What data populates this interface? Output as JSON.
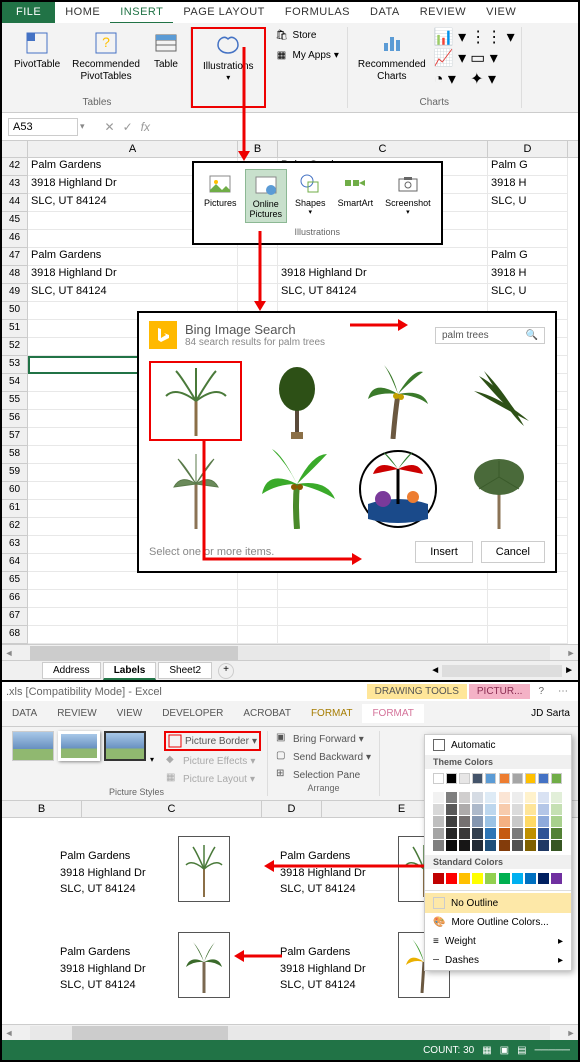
{
  "ribbon": {
    "tabs": [
      "FILE",
      "HOME",
      "INSERT",
      "PAGE LAYOUT",
      "FORMULAS",
      "DATA",
      "REVIEW",
      "VIEW"
    ],
    "active_tab": "INSERT",
    "groups": {
      "tables": {
        "label": "Tables",
        "pivottable": "PivotTable",
        "recommended": "Recommended\nPivotTables",
        "table": "Table"
      },
      "illustrations": {
        "label": "Illustrations",
        "btn": "Illustrations"
      },
      "apps": {
        "store": "Store",
        "myapps": "My Apps"
      },
      "charts": {
        "label": "Charts",
        "recommended": "Recommended\nCharts"
      }
    }
  },
  "name_box": "A53",
  "columns": {
    "A": 210,
    "B": 40,
    "C": 210,
    "D": 80
  },
  "rows": [
    {
      "n": 42,
      "A": "Palm Gardens",
      "C": "Palm Gardens",
      "D": "Palm G"
    },
    {
      "n": 43,
      "A": "3918 Highland Dr",
      "C": "",
      "D": "3918 H"
    },
    {
      "n": 44,
      "A": "SLC, UT  84124",
      "C": "",
      "D": "SLC, U"
    },
    {
      "n": 45
    },
    {
      "n": 46
    },
    {
      "n": 47,
      "A": "Palm Gardens",
      "C": "",
      "D": "Palm G"
    },
    {
      "n": 48,
      "A": "3918 Highland Dr",
      "C": "3918 Highland Dr",
      "D": "3918 H"
    },
    {
      "n": 49,
      "A": "SLC, UT  84124",
      "C": "SLC, UT  84124",
      "D": "SLC, U"
    },
    {
      "n": 50
    },
    {
      "n": 51
    },
    {
      "n": 52
    },
    {
      "n": 53
    },
    {
      "n": 54
    },
    {
      "n": 55
    },
    {
      "n": 56
    },
    {
      "n": 57
    },
    {
      "n": 58
    },
    {
      "n": 59
    },
    {
      "n": 60
    },
    {
      "n": 61
    },
    {
      "n": 62
    },
    {
      "n": 63
    },
    {
      "n": 64
    },
    {
      "n": 65
    },
    {
      "n": 66
    },
    {
      "n": 67
    },
    {
      "n": 68
    }
  ],
  "illus_popup": {
    "pictures": "Pictures",
    "online": "Online\nPictures",
    "shapes": "Shapes",
    "smartart": "SmartArt",
    "screenshot": "Screenshot",
    "label": "Illustrations"
  },
  "bing": {
    "title": "Bing Image Search",
    "sub": "84 search results for palm trees",
    "query": "palm trees",
    "footer_text": "Select one or more items.",
    "insert": "Insert",
    "cancel": "Cancel"
  },
  "sheet_tabs": {
    "t1": "Address",
    "t2": "Labels",
    "t3": "Sheet2"
  },
  "section2": {
    "title": ".xls  [Compatibility Mode] - Excel",
    "drawing_tools": "DRAWING TOOLS",
    "picture_tools": "PICTUR...",
    "tabs": [
      "DATA",
      "REVIEW",
      "VIEW",
      "DEVELOPER",
      "Acrobat",
      "FORMAT",
      "FORMAT"
    ],
    "user": "JD Sarta",
    "picture_border": "Picture Border",
    "picture_effects": "Picture Effects",
    "picture_layout": "Picture Layout",
    "bring_forward": "Bring Forward",
    "send_backward": "Send Backward",
    "selection_pane": "Selection Pane",
    "group_pic_styles": "Picture Styles",
    "group_arrange": "Arrange"
  },
  "color_picker": {
    "automatic": "Automatic",
    "theme": "Theme Colors",
    "standard": "Standard Colors",
    "no_outline": "No Outline",
    "more": "More Outline Colors...",
    "weight": "Weight",
    "dashes": "Dashes",
    "theme_row1": [
      "#ffffff",
      "#000000",
      "#e7e6e6",
      "#44546a",
      "#5b9bd5",
      "#ed7d31",
      "#a5a5a5",
      "#ffc000",
      "#4472c4",
      "#70ad47"
    ],
    "theme_shades": [
      [
        "#f2f2f2",
        "#7f7f7f",
        "#d0cece",
        "#d6dce4",
        "#deebf6",
        "#fbe5d5",
        "#ededed",
        "#fff2cc",
        "#d9e2f3",
        "#e2efd9"
      ],
      [
        "#d8d8d8",
        "#595959",
        "#aeabab",
        "#adb9ca",
        "#bdd7ee",
        "#f7cbac",
        "#dbdbdb",
        "#fee599",
        "#b4c6e7",
        "#c5e0b3"
      ],
      [
        "#bfbfbf",
        "#3f3f3f",
        "#757070",
        "#8496b0",
        "#9cc3e5",
        "#f4b183",
        "#c9c9c9",
        "#ffd965",
        "#8eaadb",
        "#a8d08d"
      ],
      [
        "#a5a5a5",
        "#262626",
        "#3a3838",
        "#323f4f",
        "#2e75b5",
        "#c55a11",
        "#7b7b7b",
        "#bf9000",
        "#2f5496",
        "#538135"
      ],
      [
        "#7f7f7f",
        "#0c0c0c",
        "#171616",
        "#222a35",
        "#1e4e79",
        "#833c0b",
        "#525252",
        "#7f6000",
        "#1f3864",
        "#375623"
      ]
    ],
    "standard_colors": [
      "#c00000",
      "#ff0000",
      "#ffc000",
      "#ffff00",
      "#92d050",
      "#00b050",
      "#00b0f0",
      "#0070c0",
      "#002060",
      "#7030a0"
    ]
  },
  "sheet2": {
    "cols": [
      "B",
      "C",
      "D",
      "E"
    ],
    "addr": {
      "l1": "Palm Gardens",
      "l2": "3918 Highland Dr",
      "l3": "SLC, UT  84124"
    }
  },
  "status": {
    "count": "COUNT: 30"
  }
}
